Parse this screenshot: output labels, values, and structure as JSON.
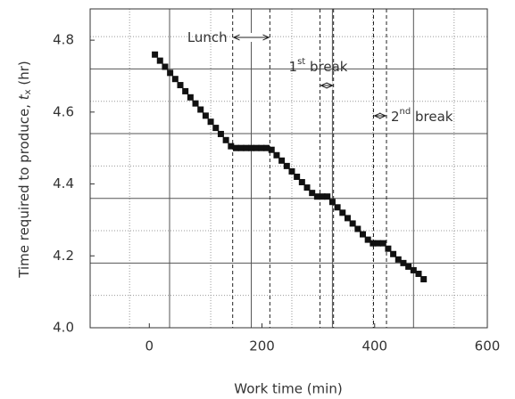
{
  "chart_data": {
    "type": "scatter",
    "x_label": "Work time (min)",
    "y_label": {
      "text": "Time required to produce, ",
      "var": "t",
      "sub": "x",
      "rest": " (hr)"
    },
    "x": [
      10,
      19,
      28,
      37,
      46,
      55,
      64,
      73,
      82,
      91,
      100,
      109,
      118,
      127,
      136,
      145,
      154,
      163,
      172,
      181,
      190,
      199,
      208,
      217,
      226,
      235,
      244,
      253,
      262,
      271,
      280,
      289,
      298,
      307,
      316,
      325,
      334,
      343,
      352,
      361,
      370,
      379,
      388,
      397,
      406,
      415,
      424,
      433,
      442,
      451,
      460,
      469,
      478,
      487
    ],
    "y": [
      4.76,
      4.743,
      4.726,
      4.709,
      4.692,
      4.675,
      4.658,
      4.641,
      4.624,
      4.607,
      4.59,
      4.573,
      4.556,
      4.539,
      4.522,
      4.505,
      4.5,
      4.5,
      4.5,
      4.5,
      4.5,
      4.5,
      4.5,
      4.495,
      4.48,
      4.465,
      4.45,
      4.435,
      4.42,
      4.405,
      4.39,
      4.375,
      4.365,
      4.365,
      4.365,
      4.35,
      4.335,
      4.32,
      4.305,
      4.29,
      4.275,
      4.26,
      4.245,
      4.235,
      4.235,
      4.235,
      4.22,
      4.205,
      4.19,
      4.18,
      4.17,
      4.16,
      4.15,
      4.135
    ],
    "color": "#111111",
    "xlim": [
      -105,
      600
    ],
    "ylim": [
      4.0,
      4.887
    ],
    "xticks": [
      0,
      200,
      400,
      600
    ],
    "yticks": [
      {
        "value": 4.0,
        "label": "4.0"
      },
      4.2,
      4.4,
      4.6,
      4.8
    ],
    "xgrid_solid": [
      36,
      181,
      325,
      469
    ],
    "xgrid_dotted": [
      -35,
      109,
      253,
      397,
      541
    ],
    "ygrid_solid": [
      4.18,
      4.36,
      4.54,
      4.72
    ],
    "ygrid_dotted": [
      4.09,
      4.27,
      4.45,
      4.63,
      4.81
    ],
    "breaks": [
      {
        "label": "Lunch",
        "start": 148,
        "end": 214
      },
      {
        "label": "1",
        "sup": "st",
        "rest": " break",
        "start": 303,
        "end": 327
      },
      {
        "label": "2",
        "sup": "nd",
        "rest": " break",
        "start": 398,
        "end": 421
      }
    ]
  }
}
